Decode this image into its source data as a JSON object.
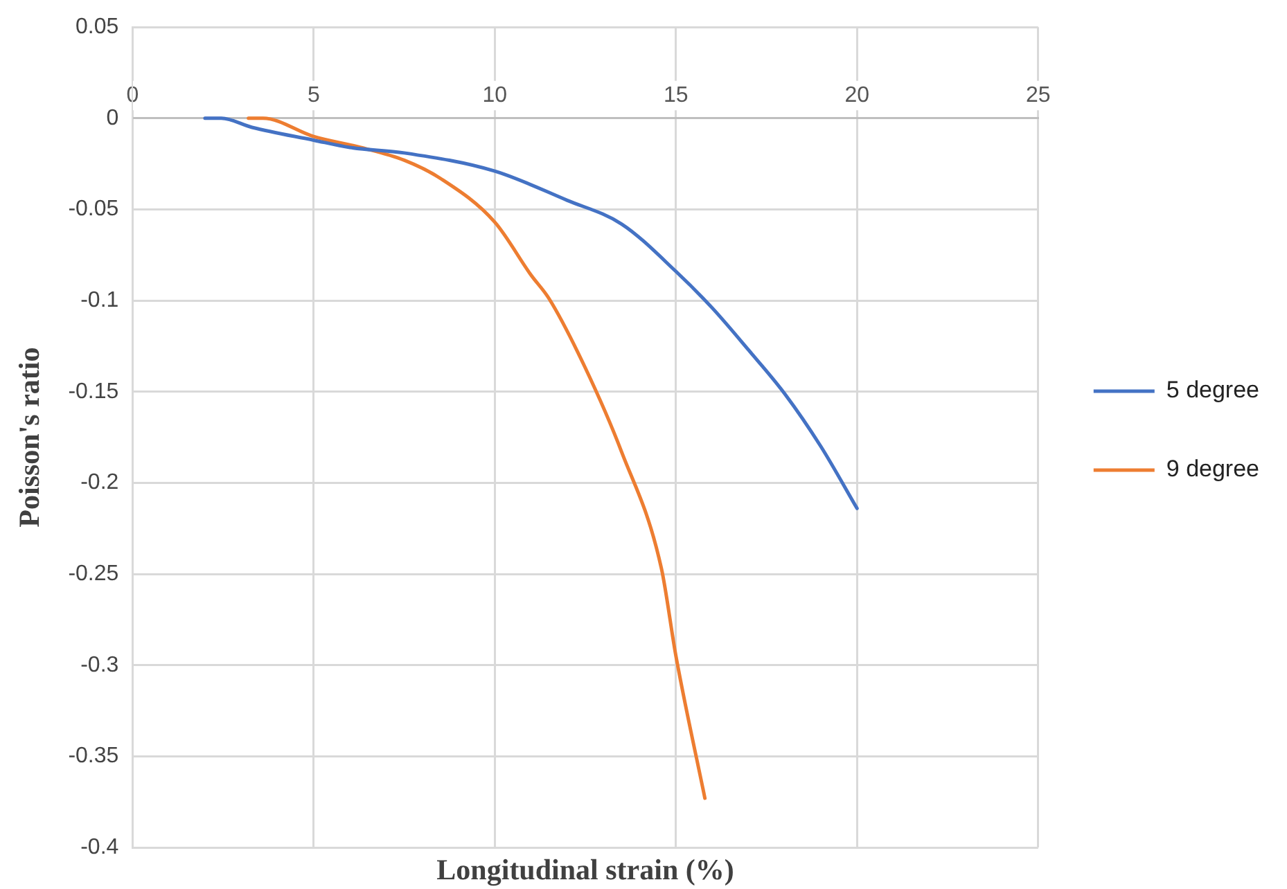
{
  "chart_data": {
    "type": "line",
    "xlabel": "Longitudinal strain (%)",
    "ylabel": "Poisson's ratio",
    "xlim": [
      0,
      25
    ],
    "xticks": [
      0,
      5,
      10,
      15,
      20,
      25
    ],
    "ylim": [
      -0.4,
      0.05
    ],
    "yticks": [
      -0.4,
      -0.35,
      -0.3,
      -0.25,
      -0.2,
      -0.15,
      -0.1,
      -0.05,
      0,
      0.05
    ],
    "grid": true,
    "legend": "right",
    "marker": "none",
    "line_style": "solid",
    "series": [
      {
        "name": "5 degree",
        "color": "#4472c4",
        "x": [
          2.0,
          2.45,
          3.3,
          5,
          6,
          7.5,
          10,
          12,
          13.5,
          15,
          16,
          17,
          18,
          19,
          20
        ],
        "values": [
          0,
          0,
          -0.005,
          -0.012,
          -0.016,
          -0.019,
          -0.029,
          -0.045,
          -0.058,
          -0.084,
          -0.104,
          -0.127,
          -0.151,
          -0.18,
          -0.214
        ]
      },
      {
        "name": "9 degree",
        "color": "#ed7d31",
        "x": [
          3.2,
          3.6,
          5,
          6.3,
          7.5,
          8.5,
          10,
          11,
          11.5,
          12.5,
          13.5,
          14.6,
          15,
          15.8
        ],
        "values": [
          0,
          0,
          -0.01,
          -0.016,
          -0.023,
          -0.033,
          -0.057,
          -0.086,
          -0.099,
          -0.137,
          -0.183,
          -0.247,
          -0.295,
          -0.373
        ]
      }
    ]
  }
}
